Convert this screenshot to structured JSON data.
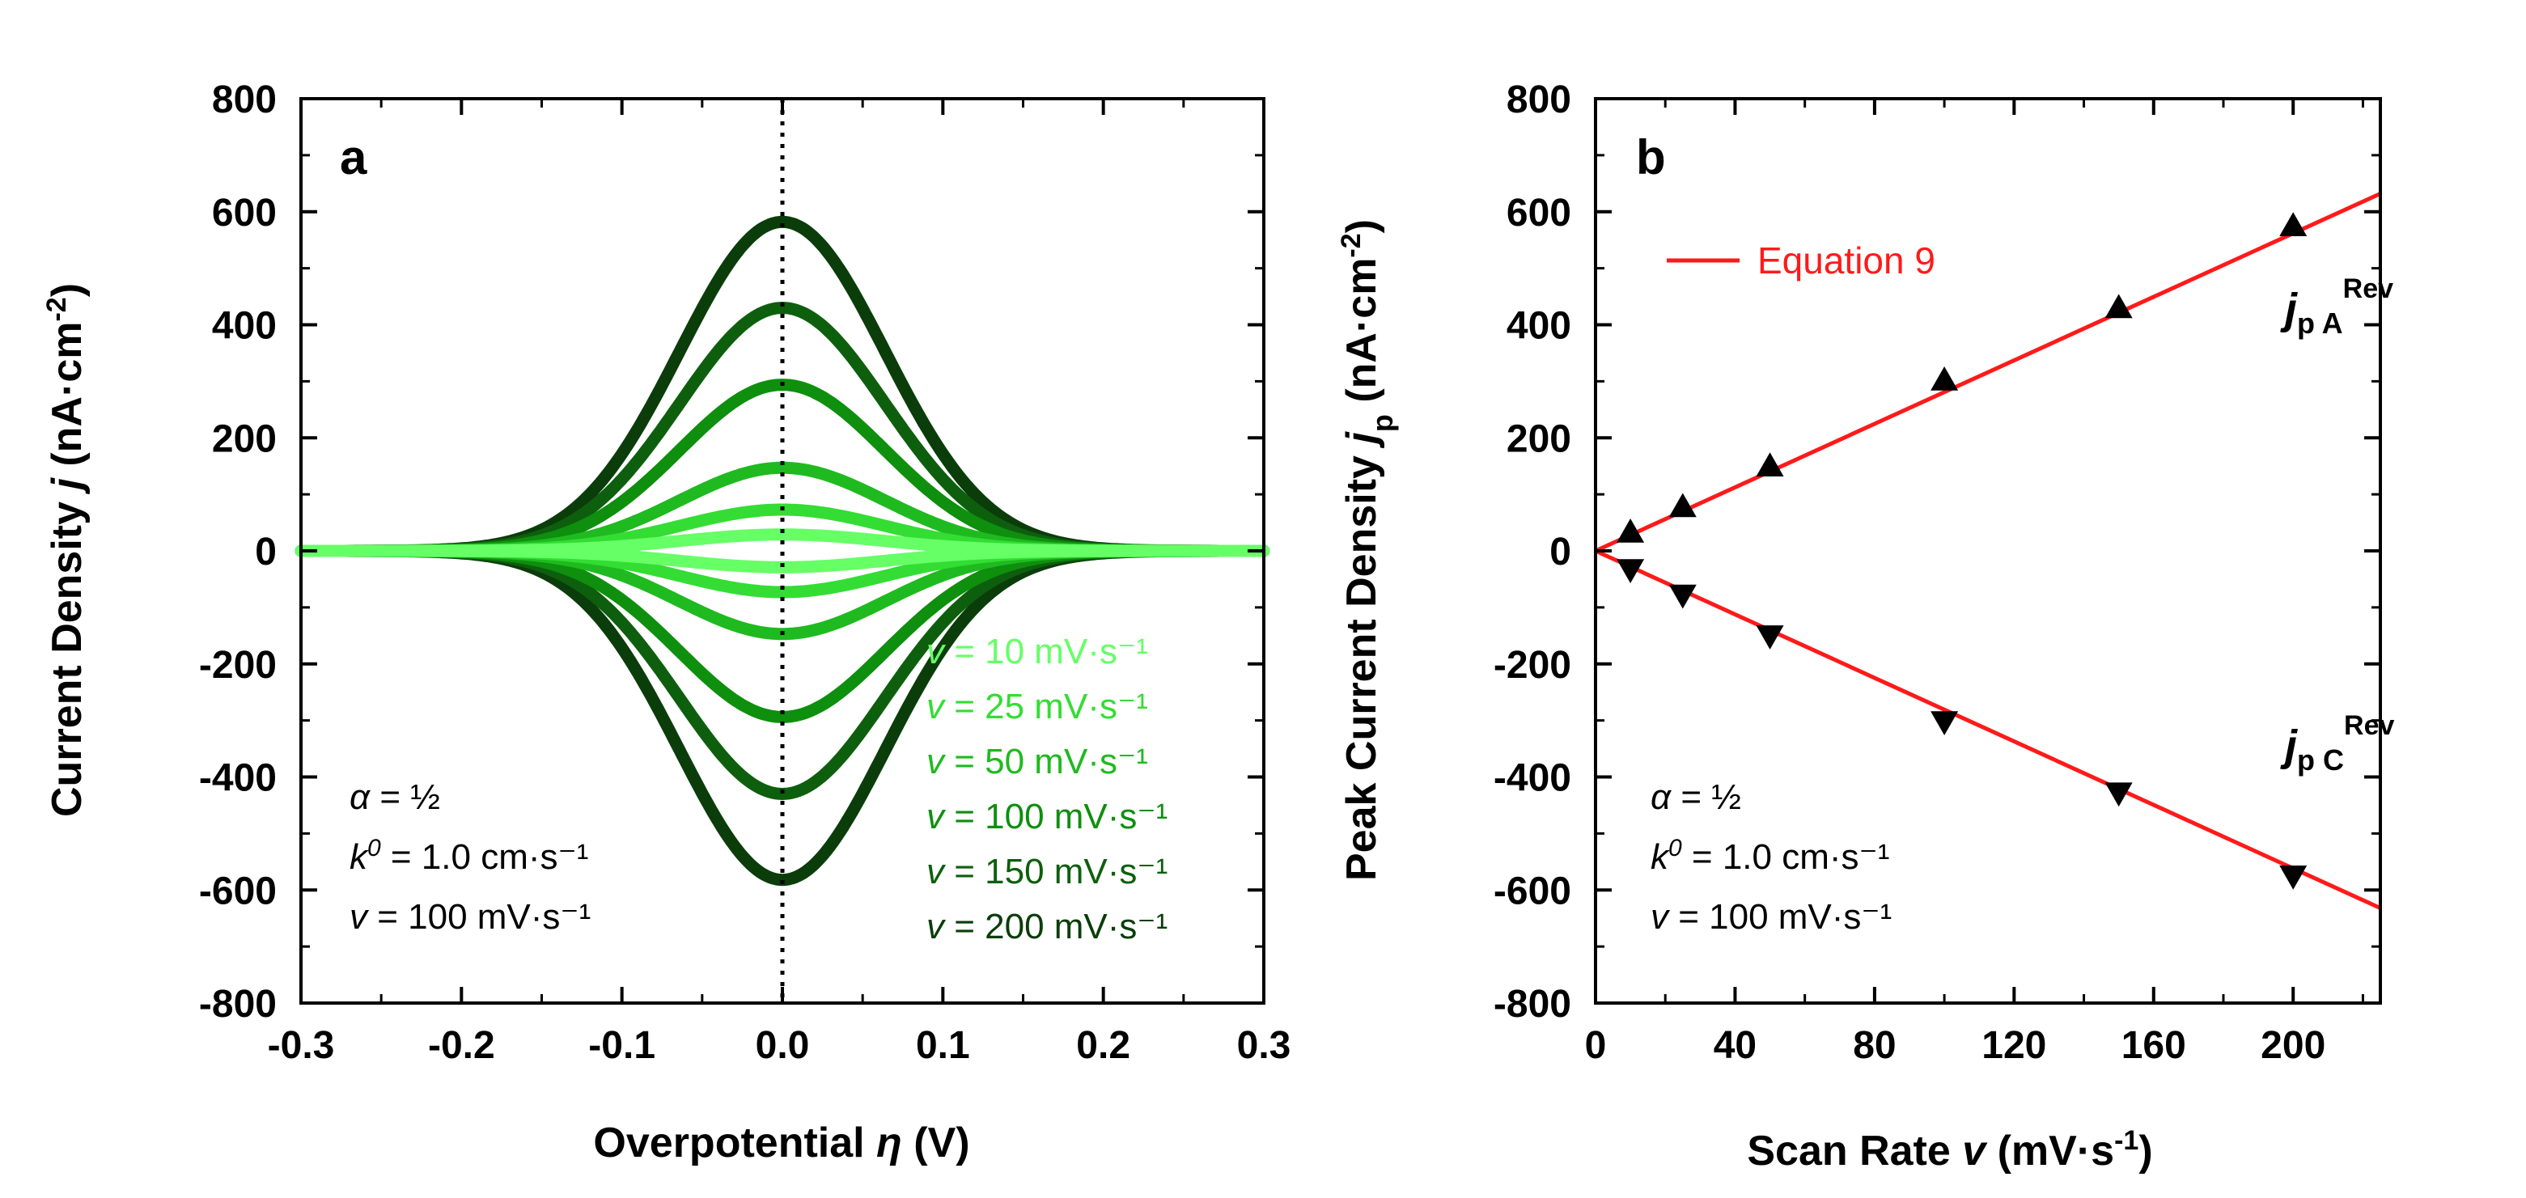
{
  "colors": {
    "axis": "#000000",
    "fit_line": "#ff1a1a",
    "series": [
      "#66ff66",
      "#33dd33",
      "#1fba1f",
      "#0e8f0e",
      "#0d5f0d",
      "#0a3d0a"
    ]
  },
  "chart_data": [
    {
      "type": "line",
      "panel_label": "a",
      "xlabel": "Overpotential η (V)",
      "ylabel": "Current Density j (nA·cm⁻²)",
      "xlim": [
        -0.3,
        0.3
      ],
      "ylim": [
        -800,
        800
      ],
      "xticks": [
        -0.3,
        -0.2,
        -0.1,
        0.0,
        0.1,
        0.2,
        0.3
      ],
      "xtick_labels": [
        "-0.3",
        "-0.2",
        "-0.1",
        "0.0",
        "0.1",
        "0.2",
        "0.3"
      ],
      "yticks": [
        -800,
        -600,
        -400,
        -200,
        0,
        200,
        400,
        600,
        800
      ],
      "ytick_labels": [
        "-800",
        "-600",
        "-400",
        "-200",
        "0",
        "200",
        "400",
        "600",
        "800"
      ],
      "vertical_reference_line": 0.0,
      "peak_width_V": 0.064,
      "series": [
        {
          "name": "v = 10 mV·s⁻¹",
          "peak_anodic": 29,
          "peak_cathodic": -29
        },
        {
          "name": "v = 25 mV·s⁻¹",
          "peak_anodic": 73,
          "peak_cathodic": -73
        },
        {
          "name": "v = 50 mV·s⁻¹",
          "peak_anodic": 147,
          "peak_cathodic": -147
        },
        {
          "name": "v = 100 mV·s⁻¹",
          "peak_anodic": 294,
          "peak_cathodic": -294
        },
        {
          "name": "v = 150 mV·s⁻¹",
          "peak_anodic": 430,
          "peak_cathodic": -430
        },
        {
          "name": "v = 200 mV·s⁻¹",
          "peak_anodic": 582,
          "peak_cathodic": -582
        }
      ],
      "annotations": [
        "α = ½",
        "k⁰ = 1.0 cm·s⁻¹",
        "v = 100 mV·s⁻¹"
      ],
      "legend_placement": "bottom-right",
      "grid": false
    },
    {
      "type": "scatter",
      "panel_label": "b",
      "xlabel": "Scan Rate v (mV·s⁻¹)",
      "ylabel": "Peak Current Density jₚ (nA·cm⁻²)",
      "xlim": [
        0,
        225
      ],
      "ylim": [
        -800,
        800
      ],
      "xticks": [
        0,
        40,
        80,
        120,
        160,
        200
      ],
      "xtick_labels": [
        "0",
        "40",
        "80",
        "120",
        "160",
        "200"
      ],
      "yticks": [
        -800,
        -600,
        -400,
        -200,
        0,
        200,
        400,
        600,
        800
      ],
      "ytick_labels": [
        "-800",
        "-600",
        "-400",
        "-200",
        "0",
        "200",
        "400",
        "600",
        "800"
      ],
      "x": [
        10,
        25,
        50,
        100,
        150,
        200
      ],
      "series": [
        {
          "name": "jp A Rev",
          "label_main": "j",
          "label_sub": "p A",
          "label_sup": "Rev",
          "marker": "triangle-up",
          "values": [
            33,
            78,
            150,
            302,
            430,
            575
          ]
        },
        {
          "name": "jp C Rev",
          "label_main": "j",
          "label_sub": "p C",
          "label_sup": "Rev",
          "marker": "triangle-down",
          "values": [
            -33,
            -78,
            -150,
            -302,
            -428,
            -575
          ]
        }
      ],
      "fit_lines": [
        {
          "name": "Equation 9",
          "x": [
            0,
            225
          ],
          "y": [
            0,
            632
          ]
        },
        {
          "name": "Equation 9",
          "x": [
            0,
            225
          ],
          "y": [
            0,
            -632
          ]
        }
      ],
      "legend": [
        {
          "name": "Equation 9",
          "style": "red line"
        }
      ],
      "legend_placement": "top-left",
      "annotations": [
        "α = ½",
        "k⁰ = 1.0 cm·s⁻¹",
        "v = 100 mV·s⁻¹"
      ],
      "grid": false
    }
  ]
}
